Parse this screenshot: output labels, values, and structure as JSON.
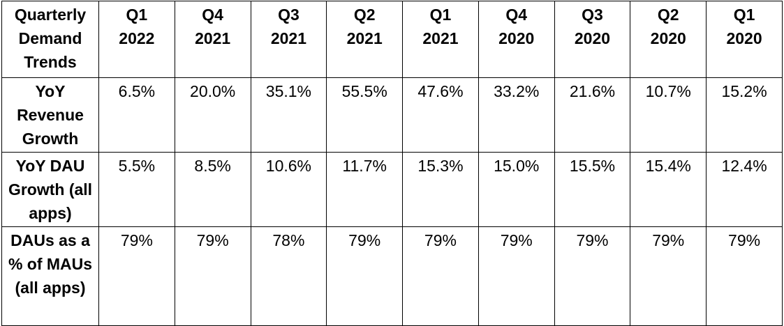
{
  "table": {
    "header": [
      "Quarterly Demand Trends",
      "Q1 2022",
      "Q4 2021",
      "Q3 2021",
      "Q2 2021",
      "Q1 2021",
      "Q4 2020",
      "Q3 2020",
      "Q2 2020",
      "Q1 2020"
    ],
    "rows": [
      [
        "YoY Revenue Growth",
        "6.5%",
        "20.0%",
        "35.1%",
        "55.5%",
        "47.6%",
        "33.2%",
        "21.6%",
        "10.7%",
        "15.2%"
      ],
      [
        "YoY DAU Growth (all apps)",
        "5.5%",
        "8.5%",
        "10.6%",
        "11.7%",
        "15.3%",
        "15.0%",
        "15.5%",
        "15.4%",
        "12.4%"
      ],
      [
        "DAUs as a % of MAUs (all apps)",
        "79%",
        "79%",
        "78%",
        "79%",
        "79%",
        "79%",
        "79%",
        "79%",
        "79%"
      ]
    ]
  }
}
